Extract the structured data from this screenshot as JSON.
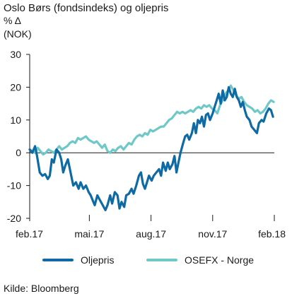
{
  "chart_data": {
    "type": "line",
    "title": "Oslo Børs (fondsindeks) og oljepris",
    "ylabel": [
      "% Δ",
      "(NOK)"
    ],
    "xlabel": "",
    "ylim": [
      -20,
      30
    ],
    "yticks": [
      -20,
      -10,
      0,
      10,
      20,
      30
    ],
    "xlim": [
      "2017-02-01",
      "2018-02-01"
    ],
    "xticks": [
      {
        "date": "2017-02-01",
        "label": "feb.17"
      },
      {
        "date": "2017-05-01",
        "label": "mai.17"
      },
      {
        "date": "2017-08-01",
        "label": "aug.17"
      },
      {
        "date": "2017-11-01",
        "label": "nov.17"
      },
      {
        "date": "2018-02-01",
        "label": "feb.18"
      }
    ],
    "grid": false,
    "legend_position": "bottom",
    "series": [
      {
        "name": "Oljepris",
        "color": "#0e6aa5",
        "points": [
          [
            "2017-02-01",
            1.0
          ],
          [
            "2017-02-05",
            0.0
          ],
          [
            "2017-02-09",
            2.0
          ],
          [
            "2017-02-12",
            -1.0
          ],
          [
            "2017-02-16",
            -6.0
          ],
          [
            "2017-02-20",
            -7.0
          ],
          [
            "2017-02-24",
            -6.5
          ],
          [
            "2017-02-28",
            -8.0
          ],
          [
            "2017-03-03",
            -7.0
          ],
          [
            "2017-03-06",
            -2.0
          ],
          [
            "2017-03-09",
            -3.0
          ],
          [
            "2017-03-13",
            1.0
          ],
          [
            "2017-03-17",
            0.0
          ],
          [
            "2017-03-20",
            -2.0
          ],
          [
            "2017-03-23",
            -6.0
          ],
          [
            "2017-03-26",
            -4.0
          ],
          [
            "2017-03-30",
            -2.0
          ],
          [
            "2017-04-03",
            -6.0
          ],
          [
            "2017-04-07",
            -10.0
          ],
          [
            "2017-04-11",
            -9.0
          ],
          [
            "2017-04-15",
            -11.0
          ],
          [
            "2017-04-18",
            -9.0
          ],
          [
            "2017-04-22",
            -11.0
          ],
          [
            "2017-04-26",
            -10.0
          ],
          [
            "2017-04-30",
            -12.0
          ],
          [
            "2017-05-03",
            -13.0
          ],
          [
            "2017-05-06",
            -14.5
          ],
          [
            "2017-05-09",
            -16.0
          ],
          [
            "2017-05-13",
            -13.0
          ],
          [
            "2017-05-17",
            -14.5
          ],
          [
            "2017-05-21",
            -16.0
          ],
          [
            "2017-05-25",
            -17.5
          ],
          [
            "2017-05-28",
            -16.0
          ],
          [
            "2017-06-01",
            -13.0
          ],
          [
            "2017-06-04",
            -15.5
          ],
          [
            "2017-06-08",
            -12.0
          ],
          [
            "2017-06-12",
            -13.0
          ],
          [
            "2017-06-15",
            -17.0
          ],
          [
            "2017-06-18",
            -15.0
          ],
          [
            "2017-06-22",
            -16.5
          ],
          [
            "2017-06-25",
            -13.0
          ],
          [
            "2017-06-29",
            -12.5
          ],
          [
            "2017-07-03",
            -11.0
          ],
          [
            "2017-07-06",
            -12.5
          ],
          [
            "2017-07-10",
            -10.0
          ],
          [
            "2017-07-14",
            -7.0
          ],
          [
            "2017-07-17",
            -6.0
          ],
          [
            "2017-07-20",
            -9.5
          ],
          [
            "2017-07-23",
            -11.0
          ],
          [
            "2017-07-26",
            -9.0
          ],
          [
            "2017-07-29",
            -7.0
          ],
          [
            "2017-08-02",
            -8.5
          ],
          [
            "2017-08-05",
            -7.0
          ],
          [
            "2017-08-09",
            -6.0
          ],
          [
            "2017-08-13",
            -5.0
          ],
          [
            "2017-08-16",
            -7.0
          ],
          [
            "2017-08-19",
            -3.0
          ],
          [
            "2017-08-23",
            -5.5
          ],
          [
            "2017-08-26",
            -3.0
          ],
          [
            "2017-08-29",
            -5.0
          ],
          [
            "2017-09-02",
            -3.5
          ],
          [
            "2017-09-05",
            -1.0
          ],
          [
            "2017-09-08",
            -6.0
          ],
          [
            "2017-09-11",
            -3.0
          ],
          [
            "2017-09-14",
            0.0
          ],
          [
            "2017-09-18",
            3.0
          ],
          [
            "2017-09-21",
            5.0
          ],
          [
            "2017-09-24",
            5.5
          ],
          [
            "2017-09-27",
            4.0
          ],
          [
            "2017-10-01",
            6.0
          ],
          [
            "2017-10-04",
            9.0
          ],
          [
            "2017-10-07",
            6.0
          ],
          [
            "2017-10-10",
            10.0
          ],
          [
            "2017-10-13",
            9.0
          ],
          [
            "2017-10-16",
            11.0
          ],
          [
            "2017-10-19",
            8.0
          ],
          [
            "2017-10-22",
            11.5
          ],
          [
            "2017-10-25",
            12.0
          ],
          [
            "2017-10-28",
            10.0
          ],
          [
            "2017-11-01",
            12.0
          ],
          [
            "2017-11-04",
            14.0
          ],
          [
            "2017-11-07",
            16.0
          ],
          [
            "2017-11-10",
            18.0
          ],
          [
            "2017-11-13",
            15.0
          ],
          [
            "2017-11-16",
            19.0
          ],
          [
            "2017-11-19",
            16.0
          ],
          [
            "2017-11-22",
            17.0
          ],
          [
            "2017-11-25",
            20.0
          ],
          [
            "2017-11-28",
            18.0
          ],
          [
            "2017-12-01",
            17.0
          ],
          [
            "2017-12-04",
            19.5
          ],
          [
            "2017-12-07",
            17.0
          ],
          [
            "2017-12-10",
            16.0
          ],
          [
            "2017-12-13",
            14.0
          ],
          [
            "2017-12-16",
            15.5
          ],
          [
            "2017-12-19",
            13.0
          ],
          [
            "2017-12-22",
            11.0
          ],
          [
            "2017-12-26",
            10.0
          ],
          [
            "2017-12-29",
            8.0
          ],
          [
            "2018-01-02",
            7.0
          ],
          [
            "2018-01-06",
            6.0
          ],
          [
            "2018-01-09",
            9.0
          ],
          [
            "2018-01-13",
            10.0
          ],
          [
            "2018-01-16",
            9.5
          ],
          [
            "2018-01-20",
            12.0
          ],
          [
            "2018-01-24",
            13.5
          ],
          [
            "2018-01-27",
            13.0
          ],
          [
            "2018-01-30",
            11.0
          ]
        ]
      },
      {
        "name": "OSEFX - Norge",
        "color": "#6fc8c8",
        "points": [
          [
            "2017-02-01",
            1.0
          ],
          [
            "2017-02-05",
            0.5
          ],
          [
            "2017-02-09",
            0.0
          ],
          [
            "2017-02-13",
            1.5
          ],
          [
            "2017-02-17",
            0.5
          ],
          [
            "2017-02-21",
            -0.5
          ],
          [
            "2017-02-25",
            0.0
          ],
          [
            "2017-03-01",
            1.0
          ],
          [
            "2017-03-05",
            0.5
          ],
          [
            "2017-03-09",
            0.0
          ],
          [
            "2017-03-13",
            1.0
          ],
          [
            "2017-03-17",
            2.0
          ],
          [
            "2017-03-21",
            1.0
          ],
          [
            "2017-03-25",
            1.5
          ],
          [
            "2017-03-29",
            2.0
          ],
          [
            "2017-04-02",
            3.0
          ],
          [
            "2017-04-06",
            3.5
          ],
          [
            "2017-04-10",
            3.0
          ],
          [
            "2017-04-14",
            4.5
          ],
          [
            "2017-04-18",
            4.0
          ],
          [
            "2017-04-22",
            4.5
          ],
          [
            "2017-04-26",
            5.0
          ],
          [
            "2017-04-30",
            4.0
          ],
          [
            "2017-05-04",
            3.5
          ],
          [
            "2017-05-08",
            3.0
          ],
          [
            "2017-05-12",
            3.5
          ],
          [
            "2017-05-16",
            2.5
          ],
          [
            "2017-05-20",
            1.5
          ],
          [
            "2017-05-24",
            2.5
          ],
          [
            "2017-05-28",
            0.5
          ],
          [
            "2017-06-01",
            0.0
          ],
          [
            "2017-06-05",
            1.0
          ],
          [
            "2017-06-09",
            0.5
          ],
          [
            "2017-06-13",
            1.5
          ],
          [
            "2017-06-17",
            2.0
          ],
          [
            "2017-06-21",
            1.0
          ],
          [
            "2017-06-25",
            2.0
          ],
          [
            "2017-06-29",
            3.0
          ],
          [
            "2017-07-03",
            2.5
          ],
          [
            "2017-07-07",
            4.0
          ],
          [
            "2017-07-11",
            5.0
          ],
          [
            "2017-07-15",
            5.5
          ],
          [
            "2017-07-19",
            5.0
          ],
          [
            "2017-07-23",
            6.0
          ],
          [
            "2017-07-27",
            5.5
          ],
          [
            "2017-07-31",
            7.0
          ],
          [
            "2017-08-04",
            6.5
          ],
          [
            "2017-08-08",
            7.0
          ],
          [
            "2017-08-12",
            7.5
          ],
          [
            "2017-08-16",
            8.0
          ],
          [
            "2017-08-20",
            8.0
          ],
          [
            "2017-08-24",
            9.0
          ],
          [
            "2017-08-28",
            10.0
          ],
          [
            "2017-09-01",
            10.5
          ],
          [
            "2017-09-05",
            11.5
          ],
          [
            "2017-09-09",
            12.5
          ],
          [
            "2017-09-13",
            12.0
          ],
          [
            "2017-09-17",
            12.5
          ],
          [
            "2017-09-21",
            12.0
          ],
          [
            "2017-09-25",
            12.5
          ],
          [
            "2017-09-29",
            13.0
          ],
          [
            "2017-10-03",
            12.5
          ],
          [
            "2017-10-07",
            13.5
          ],
          [
            "2017-10-11",
            14.0
          ],
          [
            "2017-10-15",
            13.5
          ],
          [
            "2017-10-19",
            14.5
          ],
          [
            "2017-10-23",
            14.0
          ],
          [
            "2017-10-27",
            14.5
          ],
          [
            "2017-10-31",
            13.5
          ],
          [
            "2017-11-04",
            13.0
          ],
          [
            "2017-11-08",
            12.0
          ],
          [
            "2017-11-12",
            14.5
          ],
          [
            "2017-11-16",
            16.0
          ],
          [
            "2017-11-20",
            18.0
          ],
          [
            "2017-11-24",
            19.0
          ],
          [
            "2017-11-28",
            20.5
          ],
          [
            "2017-12-02",
            19.0
          ],
          [
            "2017-12-06",
            17.5
          ],
          [
            "2017-12-10",
            16.5
          ],
          [
            "2017-12-14",
            17.0
          ],
          [
            "2017-12-18",
            15.5
          ],
          [
            "2017-12-22",
            14.5
          ],
          [
            "2017-12-26",
            14.0
          ],
          [
            "2017-12-30",
            13.5
          ],
          [
            "2018-01-03",
            12.5
          ],
          [
            "2018-01-07",
            13.0
          ],
          [
            "2018-01-11",
            12.0
          ],
          [
            "2018-01-15",
            12.5
          ],
          [
            "2018-01-19",
            13.5
          ],
          [
            "2018-01-23",
            15.0
          ],
          [
            "2018-01-27",
            16.0
          ],
          [
            "2018-01-31",
            15.5
          ]
        ]
      }
    ]
  },
  "source": "Kilde: Bloomberg"
}
